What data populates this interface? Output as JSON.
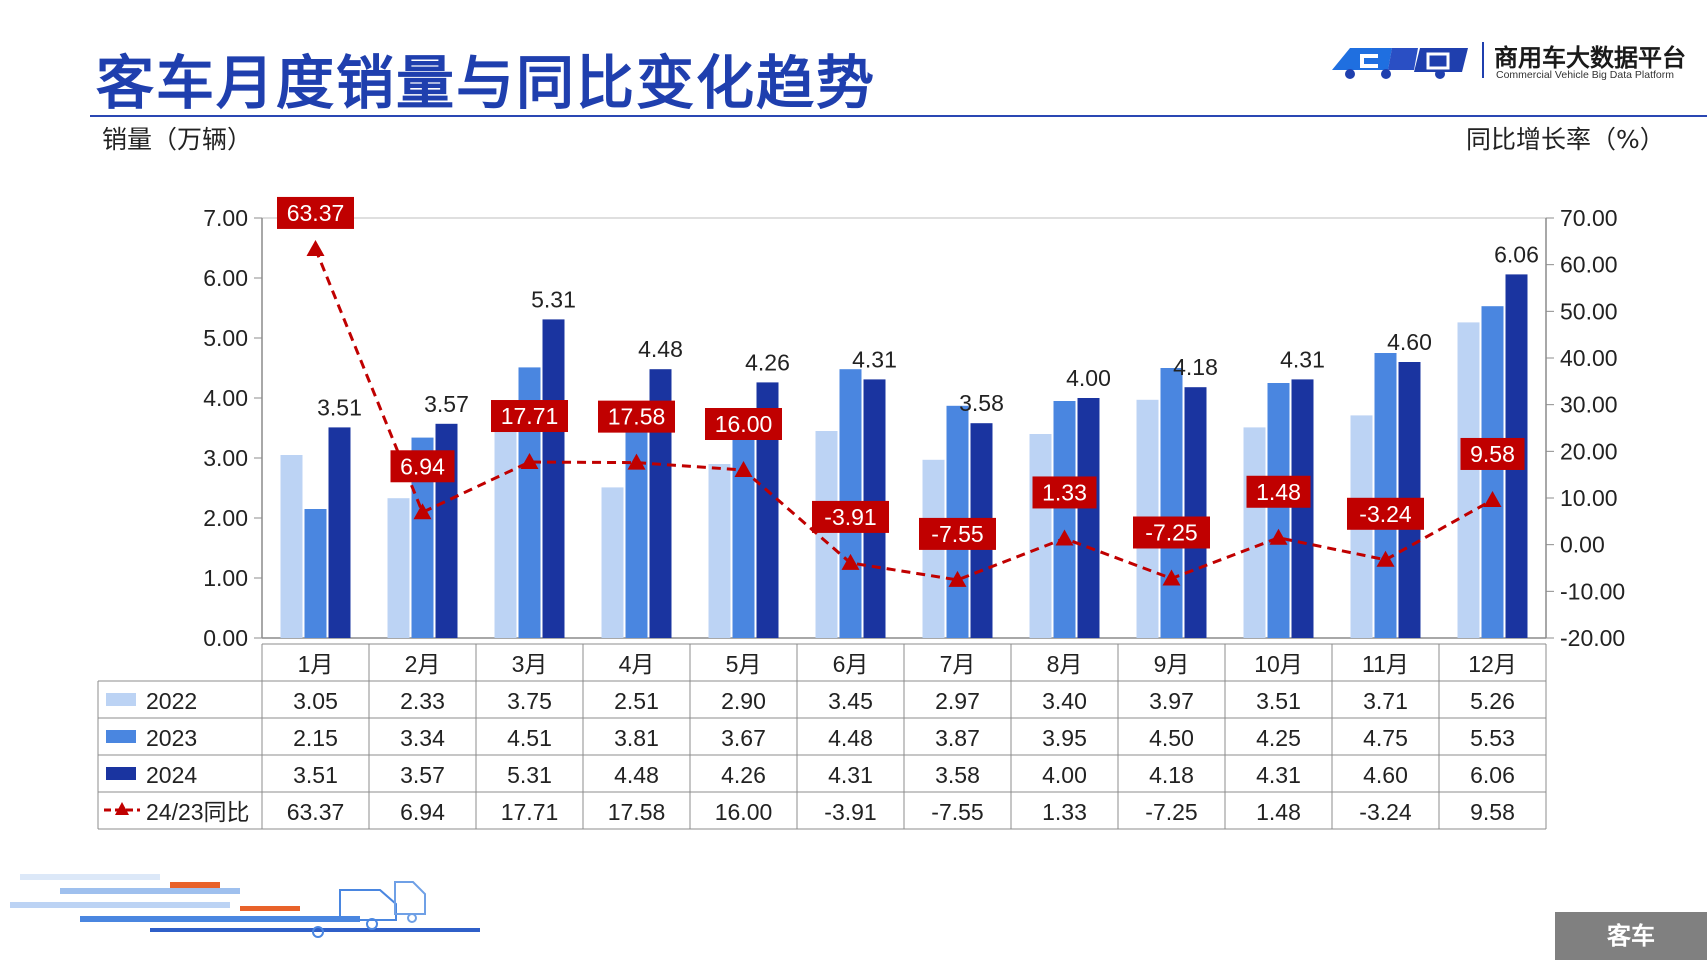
{
  "header": {
    "title": "客车月度销量与同比变化趋势",
    "logo_cn": "商用车大数据平台",
    "logo_en": "Commercial Vehicle Big Data Platform"
  },
  "axes": {
    "left_title": "销量（万辆）",
    "right_title": "同比增长率（%）"
  },
  "footer": {
    "tag": "客车"
  },
  "colors": {
    "s2022": "#bcd3f4",
    "s2023": "#4a86e0",
    "s2024": "#1a34a0",
    "yoy": "#c00000",
    "title": "#1f3fae"
  },
  "chart_data": {
    "type": "bar",
    "categories": [
      "1月",
      "2月",
      "3月",
      "4月",
      "5月",
      "6月",
      "7月",
      "8月",
      "9月",
      "10月",
      "11月",
      "12月"
    ],
    "series": [
      {
        "name": "2022",
        "type": "bar",
        "axis": "left",
        "values": [
          3.05,
          2.33,
          3.75,
          2.51,
          2.9,
          3.45,
          2.97,
          3.4,
          3.97,
          3.51,
          3.71,
          5.26
        ]
      },
      {
        "name": "2023",
        "type": "bar",
        "axis": "left",
        "values": [
          2.15,
          3.34,
          4.51,
          3.81,
          3.67,
          4.48,
          3.87,
          3.95,
          4.5,
          4.25,
          4.75,
          5.53
        ]
      },
      {
        "name": "2024",
        "type": "bar",
        "axis": "left",
        "values": [
          3.51,
          3.57,
          5.31,
          4.48,
          4.26,
          4.31,
          3.58,
          4.0,
          4.18,
          4.31,
          4.6,
          6.06
        ]
      },
      {
        "name": "24/23同比",
        "type": "line",
        "axis": "right",
        "values": [
          63.37,
          6.94,
          17.71,
          17.58,
          16.0,
          -3.91,
          -7.55,
          1.33,
          -7.25,
          1.48,
          -3.24,
          9.58
        ]
      }
    ],
    "left_ticks": [
      "7.00",
      "6.00",
      "5.00",
      "4.00",
      "3.00",
      "2.00",
      "1.00",
      "0.00"
    ],
    "right_ticks": [
      "70.00",
      "60.00",
      "50.00",
      "40.00",
      "30.00",
      "20.00",
      "10.00",
      "0.00",
      "-10.00",
      "-20.00"
    ],
    "ylim_left": [
      0,
      7
    ],
    "ylim_right": [
      -20,
      70
    ],
    "bar_labels": [
      "3.51",
      "3.57",
      "5.31",
      "4.48",
      "4.26",
      "4.31",
      "3.58",
      "4.00",
      "4.18",
      "4.31",
      "4.60",
      "6.06"
    ],
    "yoy_labels": [
      "63.37",
      "6.94",
      "17.71",
      "17.58",
      "16.00",
      "-3.91",
      "-7.55",
      "1.33",
      "-7.25",
      "1.48",
      "-3.24",
      "9.58"
    ],
    "table": {
      "rows": [
        {
          "label": "2022",
          "cells": [
            "3.05",
            "2.33",
            "3.75",
            "2.51",
            "2.90",
            "3.45",
            "2.97",
            "3.40",
            "3.97",
            "3.51",
            "3.71",
            "5.26"
          ]
        },
        {
          "label": "2023",
          "cells": [
            "2.15",
            "3.34",
            "4.51",
            "3.81",
            "3.67",
            "4.48",
            "3.87",
            "3.95",
            "4.50",
            "4.25",
            "4.75",
            "5.53"
          ]
        },
        {
          "label": "2024",
          "cells": [
            "3.51",
            "3.57",
            "5.31",
            "4.48",
            "4.26",
            "4.31",
            "3.58",
            "4.00",
            "4.18",
            "4.31",
            "4.60",
            "6.06"
          ]
        },
        {
          "label": "24/23同比",
          "cells": [
            "63.37",
            "6.94",
            "17.71",
            "17.58",
            "16.00",
            "-3.91",
            "-7.55",
            "1.33",
            "-7.25",
            "1.48",
            "-3.24",
            "9.58"
          ]
        }
      ]
    }
  }
}
